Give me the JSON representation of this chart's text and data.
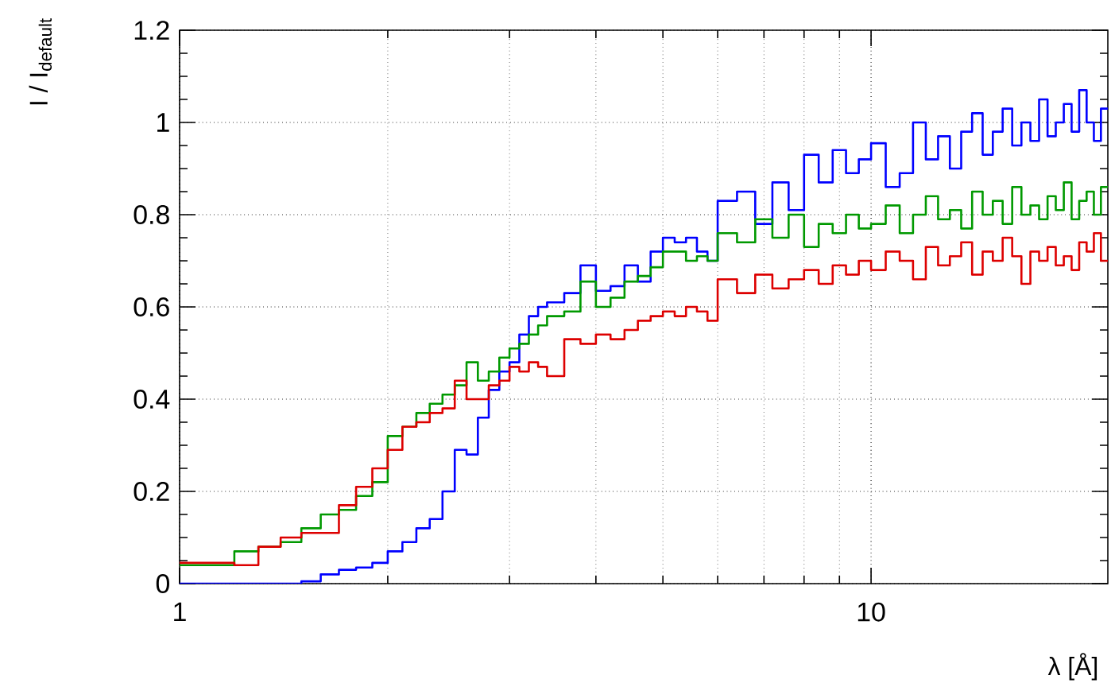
{
  "chart_data": {
    "type": "step",
    "xlabel": "λ [Å]",
    "ylabel": "I / I$_{default}$",
    "log": "x",
    "grid": true,
    "line_style": "solid",
    "marker": "none",
    "xlim": [
      1,
      22
    ],
    "ylim": [
      0,
      1.2
    ],
    "xticks": [
      1,
      10
    ],
    "yticks": [
      0,
      0.2,
      0.4,
      0.6,
      0.8,
      1,
      1.2
    ],
    "x": [
      1.0,
      1.1,
      1.2,
      1.3,
      1.4,
      1.5,
      1.6,
      1.7,
      1.8,
      1.9,
      2.0,
      2.1,
      2.2,
      2.3,
      2.4,
      2.5,
      2.6,
      2.7,
      2.8,
      2.9,
      3.0,
      3.1,
      3.2,
      3.3,
      3.4,
      3.6,
      3.8,
      4.0,
      4.2,
      4.4,
      4.6,
      4.8,
      5.0,
      5.2,
      5.4,
      5.6,
      5.8,
      6.0,
      6.4,
      6.8,
      7.2,
      7.6,
      8.0,
      8.4,
      8.8,
      9.2,
      9.6,
      10,
      10.5,
      11,
      11.5,
      12,
      12.5,
      13,
      13.5,
      14,
      14.5,
      15,
      15.5,
      16,
      16.5,
      17,
      17.5,
      18,
      18.5,
      19,
      19.5,
      20,
      20.5,
      21,
      21.5,
      22
    ],
    "series": [
      {
        "color": "#0000ff",
        "values": [
          0,
          0,
          0,
          0,
          0,
          0.005,
          0.02,
          0.03,
          0.035,
          0.045,
          0.07,
          0.09,
          0.12,
          0.14,
          0.2,
          0.29,
          0.28,
          0.36,
          0.42,
          0.46,
          0.48,
          0.54,
          0.58,
          0.6,
          0.61,
          0.63,
          0.69,
          0.635,
          0.645,
          0.69,
          0.655,
          0.72,
          0.75,
          0.74,
          0.75,
          0.72,
          0.7,
          0.83,
          0.85,
          0.78,
          0.87,
          0.81,
          0.93,
          0.87,
          0.94,
          0.89,
          0.92,
          0.955,
          0.86,
          0.89,
          1.0,
          0.92,
          0.97,
          0.9,
          0.98,
          1.02,
          0.93,
          0.98,
          1.03,
          0.95,
          1.0,
          0.96,
          1.05,
          0.97,
          1.0,
          1.04,
          0.98,
          1.07,
          1.0,
          0.96,
          1.03,
          1.03
        ]
      },
      {
        "color": "#009900",
        "values": [
          0.04,
          0.04,
          0.07,
          0.08,
          0.09,
          0.12,
          0.15,
          0.16,
          0.19,
          0.22,
          0.32,
          0.34,
          0.37,
          0.39,
          0.41,
          0.43,
          0.48,
          0.44,
          0.46,
          0.49,
          0.51,
          0.52,
          0.54,
          0.56,
          0.58,
          0.59,
          0.655,
          0.6,
          0.62,
          0.655,
          0.667,
          0.686,
          0.72,
          0.72,
          0.7,
          0.71,
          0.7,
          0.76,
          0.74,
          0.79,
          0.75,
          0.8,
          0.73,
          0.78,
          0.76,
          0.8,
          0.77,
          0.78,
          0.82,
          0.76,
          0.8,
          0.84,
          0.79,
          0.81,
          0.77,
          0.85,
          0.8,
          0.83,
          0.78,
          0.86,
          0.8,
          0.82,
          0.79,
          0.84,
          0.81,
          0.87,
          0.79,
          0.83,
          0.85,
          0.8,
          0.86,
          0.86
        ]
      },
      {
        "color": "#dd0000",
        "values": [
          0.045,
          0.045,
          0.04,
          0.08,
          0.1,
          0.11,
          0.11,
          0.17,
          0.21,
          0.25,
          0.29,
          0.34,
          0.35,
          0.37,
          0.38,
          0.44,
          0.4,
          0.4,
          0.43,
          0.44,
          0.47,
          0.46,
          0.48,
          0.47,
          0.45,
          0.53,
          0.52,
          0.54,
          0.53,
          0.55,
          0.57,
          0.58,
          0.59,
          0.58,
          0.6,
          0.59,
          0.57,
          0.66,
          0.63,
          0.67,
          0.64,
          0.66,
          0.68,
          0.65,
          0.69,
          0.67,
          0.7,
          0.68,
          0.72,
          0.7,
          0.66,
          0.73,
          0.69,
          0.71,
          0.74,
          0.67,
          0.72,
          0.7,
          0.75,
          0.71,
          0.65,
          0.72,
          0.7,
          0.73,
          0.69,
          0.71,
          0.68,
          0.74,
          0.72,
          0.76,
          0.7,
          0.7
        ]
      }
    ]
  }
}
